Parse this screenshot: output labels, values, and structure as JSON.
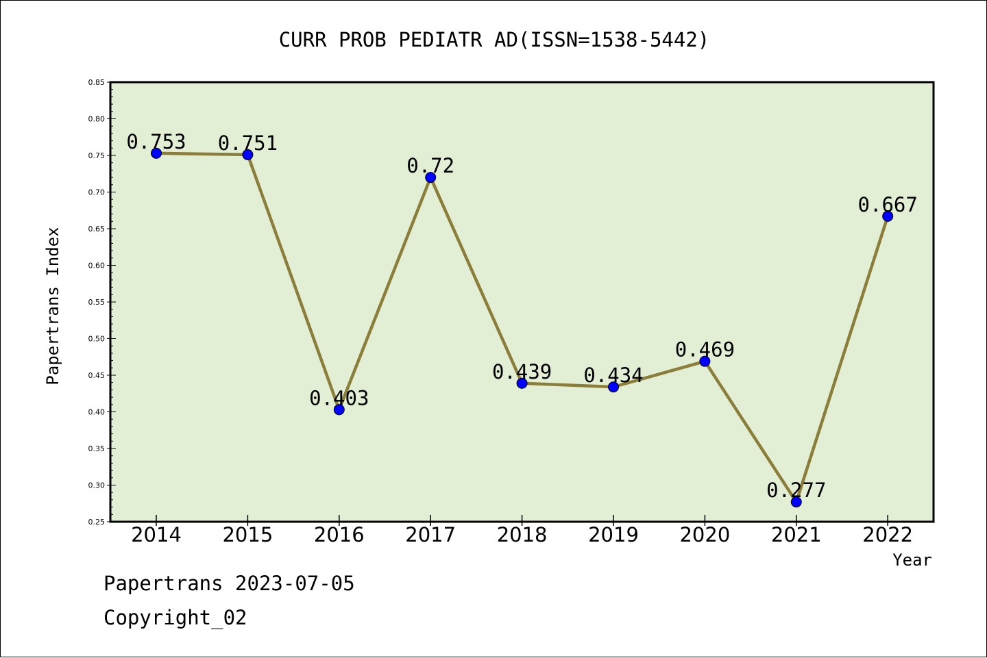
{
  "chart_data": {
    "type": "line",
    "title": "CURR PROB PEDIATR AD(ISSN=1538-5442)",
    "xlabel": "Year",
    "ylabel": "Papertrans Index",
    "categories": [
      "2014",
      "2015",
      "2016",
      "2017",
      "2018",
      "2019",
      "2020",
      "2021",
      "2022"
    ],
    "values": [
      0.753,
      0.751,
      0.403,
      0.72,
      0.439,
      0.434,
      0.469,
      0.277,
      0.667
    ],
    "data_labels": [
      "0.753",
      "0.751",
      "0.403",
      "0.72",
      "0.439",
      "0.434",
      "0.469",
      "0.277",
      "0.667"
    ],
    "ylim": [
      0.25,
      0.85
    ],
    "yticks": [
      "0.25",
      "0.30",
      "0.35",
      "0.40",
      "0.45",
      "0.50",
      "0.55",
      "0.60",
      "0.65",
      "0.70",
      "0.75",
      "0.80",
      "0.85"
    ],
    "grid": false,
    "colors": {
      "plot_background": "#e2efd4",
      "line": "#8b7d3a",
      "marker": "#0000ff"
    }
  },
  "footer": {
    "line1": "Papertrans 2023-07-05",
    "line2": "Copyright_02"
  }
}
